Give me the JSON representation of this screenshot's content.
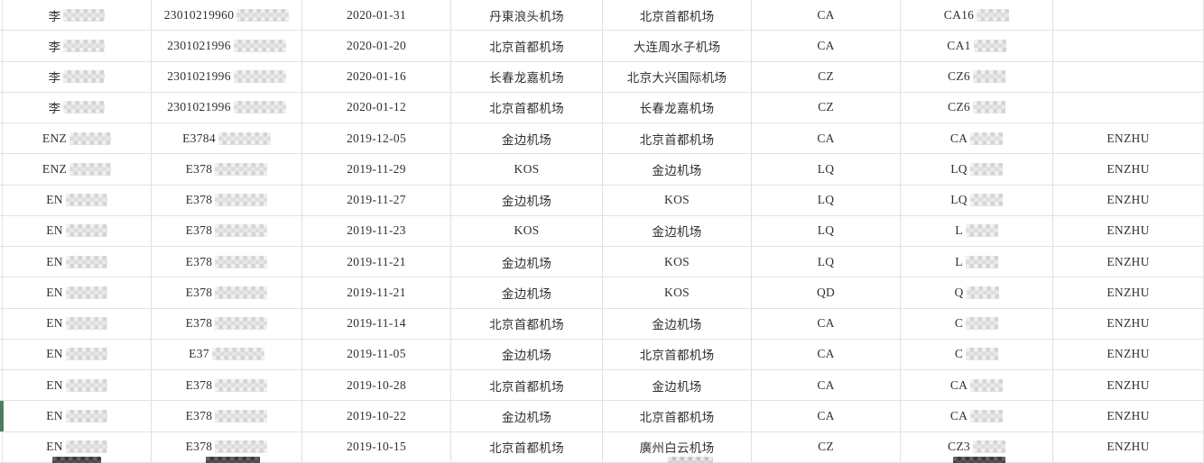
{
  "colors": {
    "background": "#ffffff",
    "row_border": "#e2e2e2",
    "col_border": "#e0e0e0",
    "text": "#303030",
    "selection_green": "#4e7c63",
    "redact_light": "#d8d8d8",
    "redact_dark": "#474747"
  },
  "selection": {
    "selected_row": 14
  },
  "table": {
    "rows": [
      {
        "name": "李",
        "name_red": true,
        "id": "23010219960",
        "id_red": true,
        "date": "2020-01-31",
        "dep": "丹東浪头机场",
        "arr": "北京首都机场",
        "airline": "CA",
        "flight": "CA16",
        "flight_red": true,
        "tag": ""
      },
      {
        "name": "李",
        "name_red": true,
        "id": "2301021996",
        "id_red": true,
        "date": "2020-01-20",
        "dep": "北京首都机场",
        "arr": "大连周水子机场",
        "airline": "CA",
        "flight": "CA1",
        "flight_red": true,
        "tag": ""
      },
      {
        "name": "李",
        "name_red": true,
        "id": "2301021996",
        "id_red": true,
        "date": "2020-01-16",
        "dep": "长春龙嘉机场",
        "arr": "北京大兴国际机场",
        "airline": "CZ",
        "flight": "CZ6",
        "flight_red": true,
        "tag": ""
      },
      {
        "name": "李",
        "name_red": true,
        "id": "2301021996",
        "id_red": true,
        "date": "2020-01-12",
        "dep": "北京首都机场",
        "arr": "长春龙嘉机场",
        "airline": "CZ",
        "flight": "CZ6",
        "flight_red": true,
        "tag": ""
      },
      {
        "name": "ENZ",
        "name_red": true,
        "id": "E3784",
        "id_red": true,
        "date": "2019-12-05",
        "dep": "金边机场",
        "arr": "北京首都机场",
        "airline": "CA",
        "flight": "CA",
        "flight_red": true,
        "tag": "ENZHU"
      },
      {
        "name": "ENZ",
        "name_red": true,
        "id": "E378",
        "id_red": true,
        "date": "2019-11-29",
        "dep": "KOS",
        "arr": "金边机场",
        "airline": "LQ",
        "flight": "LQ",
        "flight_red": true,
        "tag": "ENZHU"
      },
      {
        "name": "EN",
        "name_red": true,
        "id": "E378",
        "id_red": true,
        "date": "2019-11-27",
        "dep": "金边机场",
        "arr": "KOS",
        "airline": "LQ",
        "flight": "LQ",
        "flight_red": true,
        "tag": "ENZHU"
      },
      {
        "name": "EN",
        "name_red": true,
        "id": "E378",
        "id_red": true,
        "date": "2019-11-23",
        "dep": "KOS",
        "arr": "金边机场",
        "airline": "LQ",
        "flight": "L",
        "flight_red": true,
        "tag": "ENZHU"
      },
      {
        "name": "EN",
        "name_red": true,
        "id": "E378",
        "id_red": true,
        "date": "2019-11-21",
        "dep": "金边机场",
        "arr": "KOS",
        "airline": "LQ",
        "flight": "L",
        "flight_red": true,
        "tag": "ENZHU"
      },
      {
        "name": "EN",
        "name_red": true,
        "id": "E378",
        "id_red": true,
        "date": "2019-11-21",
        "dep": "金边机场",
        "arr": "KOS",
        "airline": "QD",
        "flight": "Q",
        "flight_red": true,
        "tag": "ENZHU"
      },
      {
        "name": "EN",
        "name_red": true,
        "id": "E378",
        "id_red": true,
        "date": "2019-11-14",
        "dep": "北京首都机场",
        "arr": "金边机场",
        "airline": "CA",
        "flight": "C",
        "flight_red": true,
        "tag": "ENZHU"
      },
      {
        "name": "EN",
        "name_red": true,
        "id": "E37",
        "id_red": true,
        "date": "2019-11-05",
        "dep": "金边机场",
        "arr": "北京首都机场",
        "airline": "CA",
        "flight": "C",
        "flight_red": true,
        "tag": "ENZHU"
      },
      {
        "name": "EN",
        "name_red": true,
        "id": "E378",
        "id_red": true,
        "date": "2019-10-28",
        "dep": "北京首都机场",
        "arr": "金边机场",
        "airline": "CA",
        "flight": "CA",
        "flight_red": true,
        "tag": "ENZHU"
      },
      {
        "name": "EN",
        "name_red": true,
        "id": "E378",
        "id_red": true,
        "date": "2019-10-22",
        "dep": "金边机场",
        "arr": "北京首都机场",
        "airline": "CA",
        "flight": "CA",
        "flight_red": true,
        "tag": "ENZHU"
      },
      {
        "name": "EN",
        "name_red": true,
        "id": "E378",
        "id_red": true,
        "date": "2019-10-15",
        "dep": "北京首都机场",
        "arr": "廣州白云机场",
        "airline": "CZ",
        "flight": "CZ3",
        "flight_red": true,
        "tag": "ENZHU"
      }
    ],
    "partial_next_row": {
      "blobs": [
        {
          "col": "name",
          "tone": "dark"
        },
        {
          "col": "id",
          "tone": "dark"
        },
        {
          "col": "arr",
          "tone": "light"
        },
        {
          "col": "flight",
          "tone": "dark"
        }
      ]
    }
  }
}
